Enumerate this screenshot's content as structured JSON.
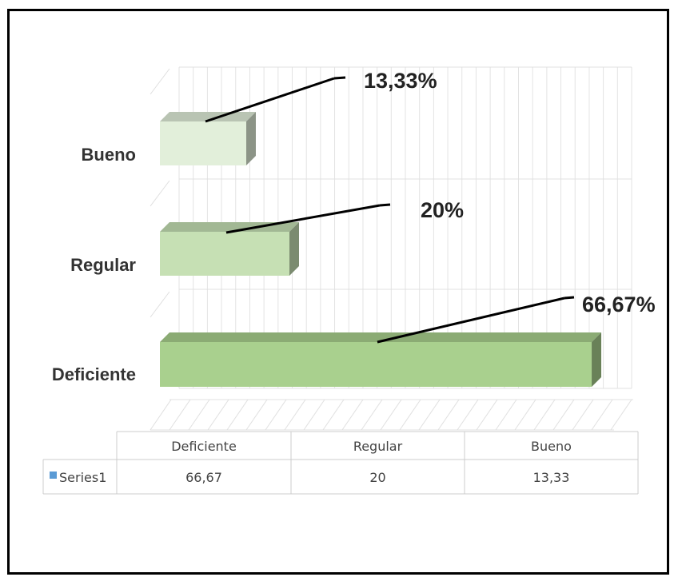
{
  "chart_data": {
    "type": "bar",
    "orientation": "horizontal",
    "three_d": true,
    "categories": [
      "Deficiente",
      "Regular",
      "Bueno"
    ],
    "series": [
      {
        "name": "Series1",
        "values": [
          66.67,
          20,
          13.33
        ]
      }
    ],
    "data_labels": [
      "66,67%",
      "20%",
      "13,33%"
    ],
    "table": {
      "header": [
        "Deficiente",
        "Regular",
        "Bueno"
      ],
      "rows": [
        {
          "name": "Series1",
          "values": [
            "66,67",
            "20",
            "13,33"
          ]
        }
      ]
    },
    "xlim": [
      0,
      80
    ],
    "grid": true,
    "legend": "data-table",
    "colors": {
      "Deficiente": "#a9d08e",
      "Regular": "#c6e0b4",
      "Bueno": "#e2efda",
      "legend_key": "#5b9bd5"
    }
  }
}
